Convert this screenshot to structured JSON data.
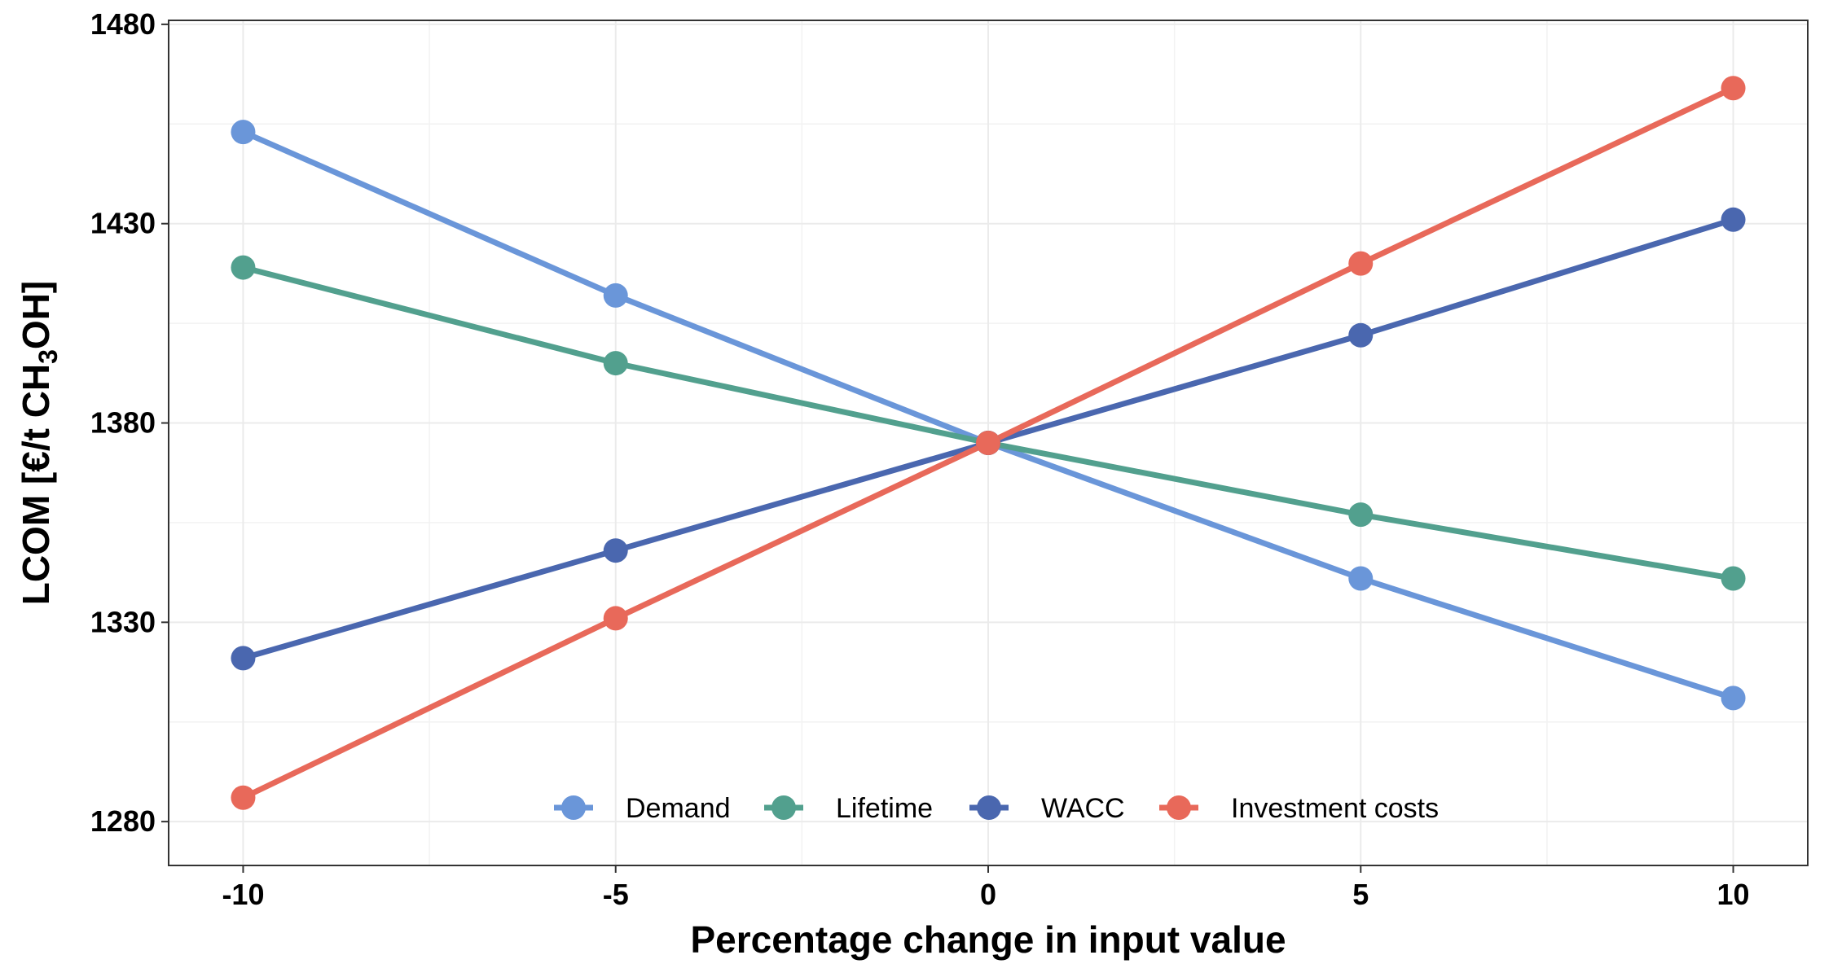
{
  "chart_data": {
    "type": "line",
    "title": "",
    "xlabel": "Percentage change in input value",
    "ylabel_main": "LCOM [€/t CH",
    "ylabel_sub": "3",
    "ylabel_end": "OH]",
    "x": [
      -10,
      -5,
      0,
      5,
      10
    ],
    "xlim": [
      -11,
      11
    ],
    "ylim": [
      1269,
      1481
    ],
    "x_ticks": [
      -10,
      -5,
      0,
      5,
      10
    ],
    "y_ticks": [
      1280,
      1330,
      1380,
      1430,
      1480
    ],
    "grid": true,
    "legend_position": "bottom-inside",
    "series": [
      {
        "name": "Demand",
        "color": "#6A96D9",
        "values": [
          1453,
          1412,
          1375,
          1341,
          1311
        ]
      },
      {
        "name": "Lifetime",
        "color": "#52A08E",
        "values": [
          1419,
          1395,
          1375,
          1357,
          1341
        ]
      },
      {
        "name": "WACC",
        "color": "#4A67AF",
        "values": [
          1321,
          1348,
          1375,
          1402,
          1431
        ]
      },
      {
        "name": "Investment costs",
        "color": "#E8695A",
        "values": [
          1286,
          1331,
          1375,
          1420,
          1464
        ]
      }
    ]
  }
}
